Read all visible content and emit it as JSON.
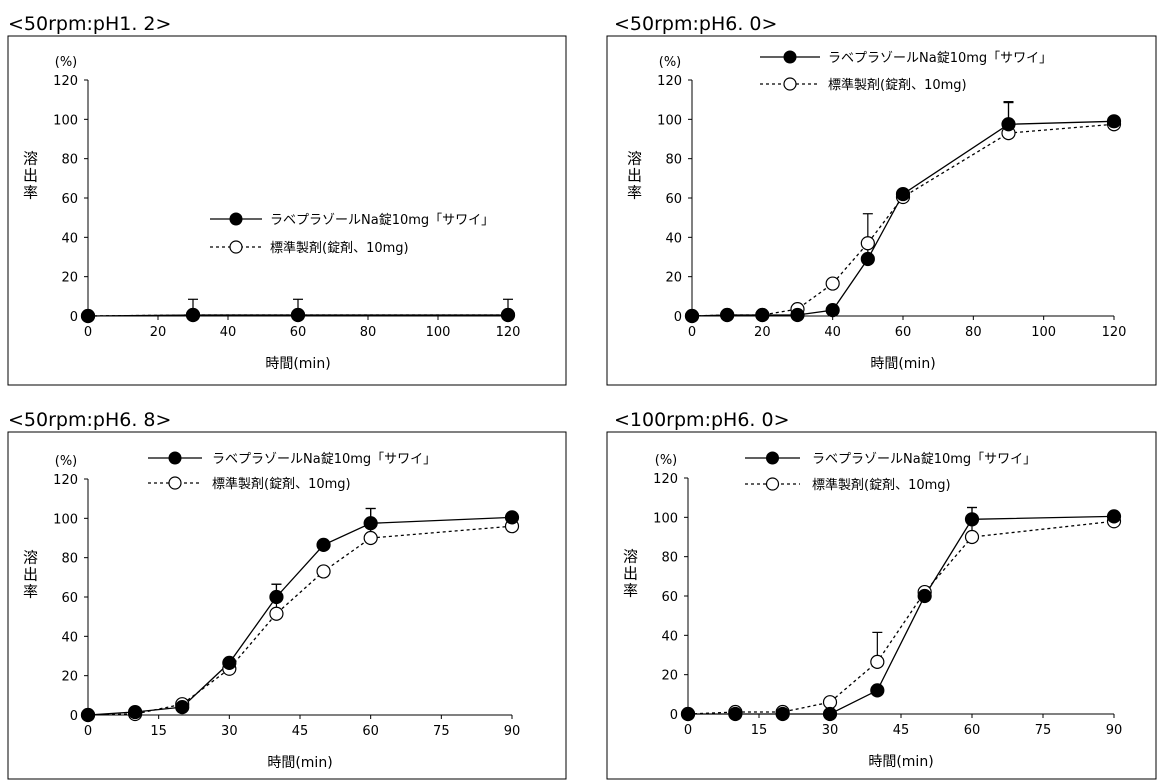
{
  "legend": {
    "test": "ラベプラゾールNa錠10mg「サワイ」",
    "ref": "標準製剤(錠剤、10mg)"
  },
  "chart_data": [
    {
      "type": "line",
      "title": "<50rpm:pH1. 2>",
      "xlabel": "時間(min)",
      "ylabel": "溶出率",
      "yunit": "(%)",
      "xlim": [
        0,
        120
      ],
      "ylim": [
        0,
        120
      ],
      "xticks": [
        0,
        20,
        40,
        60,
        80,
        100,
        120
      ],
      "yticks": [
        0,
        20,
        40,
        60,
        80,
        100,
        120
      ],
      "legend_position": "center-right",
      "series": [
        {
          "name": "ラベプラゾールNa錠10mg「サワイ」",
          "marker": "filled",
          "line": "solid",
          "x": [
            0,
            30,
            60,
            120
          ],
          "y": [
            0,
            0.5,
            0.5,
            0.5
          ],
          "err": [
            null,
            null,
            null,
            null
          ]
        },
        {
          "name": "標準製剤(錠剤、10mg)",
          "marker": "open",
          "line": "dashed",
          "x": [
            0,
            30,
            60,
            120
          ],
          "y": [
            0,
            0.5,
            0.5,
            0.5
          ],
          "err": [
            null,
            8,
            8,
            8
          ]
        }
      ]
    },
    {
      "type": "line",
      "title": "<50rpm:pH6. 0>",
      "xlabel": "時間(min)",
      "ylabel": "溶出率",
      "yunit": "(%)",
      "xlim": [
        0,
        120
      ],
      "ylim": [
        0,
        120
      ],
      "xticks": [
        0,
        20,
        40,
        60,
        80,
        100,
        120
      ],
      "yticks": [
        0,
        20,
        40,
        60,
        80,
        100,
        120
      ],
      "legend_position": "top",
      "series": [
        {
          "name": "ラベプラゾールNa錠10mg「サワイ」",
          "marker": "filled",
          "line": "solid",
          "x": [
            0,
            10,
            20,
            30,
            40,
            50,
            60,
            90,
            120
          ],
          "y": [
            0,
            0.5,
            0.5,
            0.5,
            3,
            29,
            62,
            97.5,
            99
          ],
          "err": [
            null,
            null,
            null,
            null,
            null,
            6,
            null,
            11,
            null
          ]
        },
        {
          "name": "標準製剤(錠剤、10mg)",
          "marker": "open",
          "line": "dashed",
          "x": [
            0,
            10,
            20,
            30,
            40,
            50,
            60,
            90,
            120
          ],
          "y": [
            0,
            0.5,
            0.5,
            3.5,
            16.5,
            37,
            60.5,
            93,
            97.5
          ],
          "err": [
            null,
            null,
            null,
            null,
            null,
            15,
            null,
            16,
            null
          ]
        }
      ]
    },
    {
      "type": "line",
      "title": "<50rpm:pH6. 8>",
      "xlabel": "時間(min)",
      "ylabel": "溶出率",
      "yunit": "(%)",
      "xlim": [
        0,
        90
      ],
      "ylim": [
        0,
        120
      ],
      "xticks": [
        0,
        15,
        30,
        45,
        60,
        75,
        90
      ],
      "yticks": [
        0,
        20,
        40,
        60,
        80,
        100,
        120
      ],
      "legend_position": "top",
      "series": [
        {
          "name": "ラベプラゾールNa錠10mg「サワイ」",
          "marker": "filled",
          "line": "solid",
          "x": [
            0,
            10,
            20,
            30,
            40,
            50,
            60,
            90
          ],
          "y": [
            0,
            1.5,
            4,
            26.5,
            60,
            86.5,
            97.5,
            100.5
          ],
          "err": [
            null,
            null,
            null,
            null,
            6.5,
            null,
            7.5,
            null
          ]
        },
        {
          "name": "標準製剤(錠剤、10mg)",
          "marker": "open",
          "line": "dashed",
          "x": [
            0,
            10,
            20,
            30,
            40,
            50,
            60,
            90
          ],
          "y": [
            0,
            0.5,
            5.5,
            23.5,
            51.5,
            73,
            90,
            96
          ],
          "err": [
            null,
            null,
            null,
            null,
            15,
            null,
            15,
            null
          ]
        }
      ]
    },
    {
      "type": "line",
      "title": "<100rpm:pH6. 0>",
      "xlabel": "時間(min)",
      "ylabel": "溶出率",
      "yunit": "(%)",
      "xlim": [
        0,
        90
      ],
      "ylim": [
        0,
        120
      ],
      "xticks": [
        0,
        15,
        30,
        45,
        60,
        75,
        90
      ],
      "yticks": [
        0,
        20,
        40,
        60,
        80,
        100,
        120
      ],
      "legend_position": "top",
      "series": [
        {
          "name": "ラベプラゾールNa錠10mg「サワイ」",
          "marker": "filled",
          "line": "solid",
          "x": [
            0,
            10,
            20,
            30,
            40,
            50,
            60,
            90
          ],
          "y": [
            0,
            0,
            0,
            0,
            12,
            60,
            99,
            100.5
          ],
          "err": [
            null,
            null,
            null,
            null,
            null,
            null,
            6,
            null
          ]
        },
        {
          "name": "標準製剤(錠剤、10mg)",
          "marker": "open",
          "line": "dashed",
          "x": [
            0,
            10,
            20,
            30,
            40,
            50,
            60,
            90
          ],
          "y": [
            0,
            1,
            1,
            6,
            26.5,
            62,
            90,
            98
          ],
          "err": [
            null,
            null,
            null,
            null,
            15,
            null,
            15,
            null
          ]
        }
      ]
    }
  ]
}
